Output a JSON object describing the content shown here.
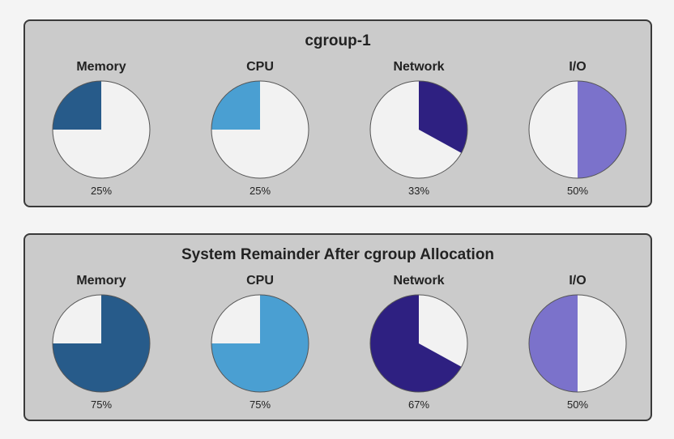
{
  "panels": [
    {
      "title": "cgroup-1",
      "gauges": [
        {
          "label": "Memory",
          "value": "25%",
          "fraction": 0.25,
          "filled_side": "before",
          "color": "#275b8a"
        },
        {
          "label": "CPU",
          "value": "25%",
          "fraction": 0.25,
          "filled_side": "before",
          "color": "#4a9fd2"
        },
        {
          "label": "Network",
          "value": "33%",
          "fraction": 0.33,
          "filled_side": "after",
          "color": "#2e2081"
        },
        {
          "label": "I/O",
          "value": "50%",
          "fraction": 0.5,
          "filled_side": "after",
          "color": "#7b72cb"
        }
      ]
    },
    {
      "title": "System Remainder After cgroup Allocation",
      "gauges": [
        {
          "label": "Memory",
          "value": "75%",
          "fraction": 0.75,
          "filled_side": "after",
          "color": "#275b8a"
        },
        {
          "label": "CPU",
          "value": "75%",
          "fraction": 0.75,
          "filled_side": "after",
          "color": "#4a9fd2"
        },
        {
          "label": "Network",
          "value": "67%",
          "fraction": 0.67,
          "filled_side": "before",
          "color": "#2e2081"
        },
        {
          "label": "I/O",
          "value": "50%",
          "fraction": 0.5,
          "filled_side": "before",
          "color": "#7b72cb"
        }
      ]
    }
  ],
  "colors": {
    "empty_slice": "#f2f2f2",
    "outline": "#555555"
  }
}
